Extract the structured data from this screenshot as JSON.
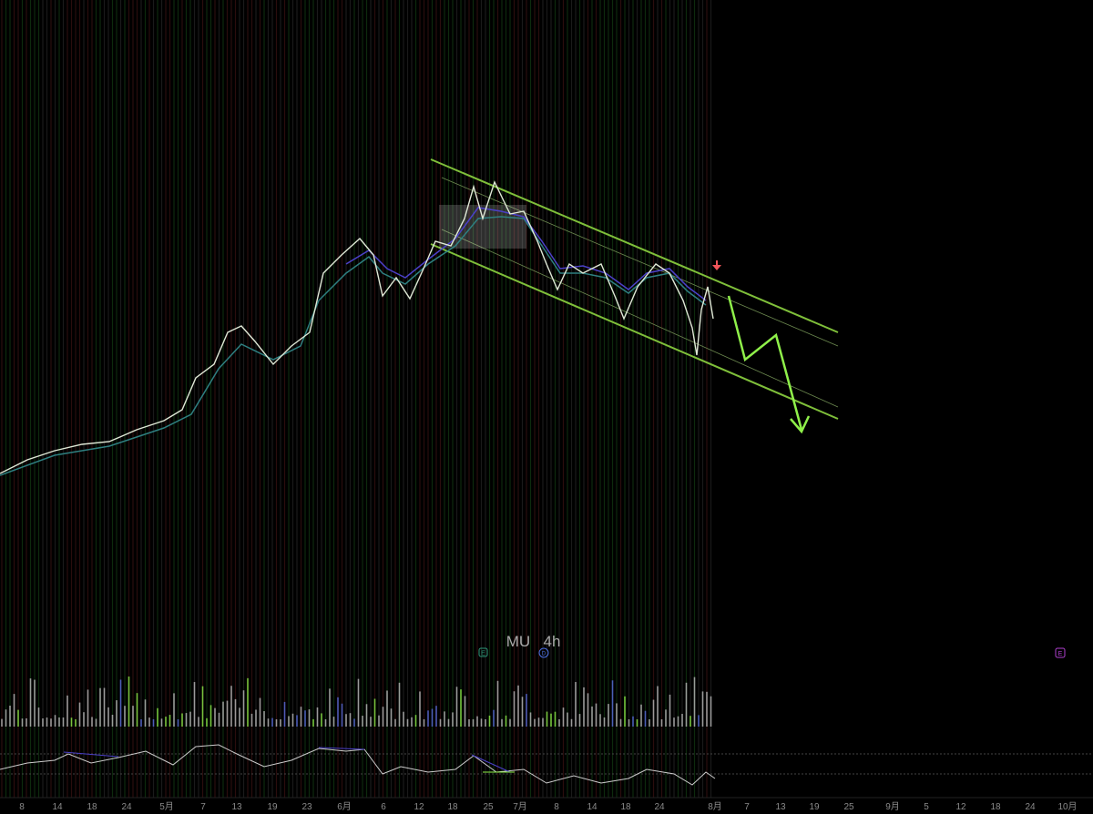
{
  "header": {
    "symbol": "MU",
    "interval": "4h"
  },
  "markers": {
    "earnings_left": "E",
    "dividend": "D",
    "earnings_right": "E"
  },
  "x_axis": {
    "labels": [
      "8",
      "14",
      "18",
      "24",
      "5月",
      "7",
      "13",
      "19",
      "23",
      "6月",
      "6",
      "12",
      "18",
      "25",
      "7月",
      "8",
      "14",
      "18",
      "24",
      "8月",
      "7",
      "13",
      "19",
      "25",
      "9月",
      "5",
      "12",
      "18",
      "24",
      "10月"
    ]
  }
}
